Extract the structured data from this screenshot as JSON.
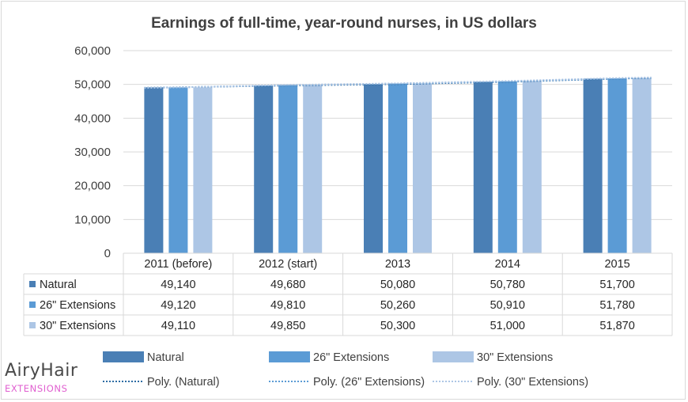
{
  "chart_data": {
    "type": "bar",
    "title": "Earnings of full-time, year-round nurses, in US dollars",
    "categories": [
      "2011 (before)",
      "2012 (start)",
      "2013",
      "2014",
      "2015"
    ],
    "series": [
      {
        "name": "Natural",
        "values": [
          49140,
          49680,
          50080,
          50780,
          51700
        ],
        "color": "#4a7fb5",
        "labels": [
          "49,140",
          "49,680",
          "50,080",
          "50,780",
          "51,700"
        ]
      },
      {
        "name": "26\" Extensions",
        "values": [
          49120,
          49810,
          50260,
          50910,
          51780
        ],
        "color": "#5b9bd5",
        "labels": [
          "49,120",
          "49,810",
          "50,260",
          "50,910",
          "51,780"
        ]
      },
      {
        "name": "30\" Extensions",
        "values": [
          49110,
          49850,
          50300,
          51000,
          51870
        ],
        "color": "#adc6e5",
        "labels": [
          "49,110",
          "49,850",
          "50,300",
          "51,000",
          "51,870"
        ]
      }
    ],
    "trendlines": [
      {
        "name": "Poly. (Natural)",
        "series_index": 0,
        "color": "#2e6da4",
        "style": "dotted"
      },
      {
        "name": "Poly. (26\" Extensions)",
        "series_index": 1,
        "color": "#5b9bd5",
        "style": "dotted"
      },
      {
        "name": "Poly. (30\" Extensions)",
        "series_index": 2,
        "color": "#adc6e5",
        "style": "dotted"
      }
    ],
    "ylim": [
      0,
      60000
    ],
    "yticks": [
      0,
      10000,
      20000,
      30000,
      40000,
      50000,
      60000
    ],
    "ytick_labels": [
      "0",
      "10,000",
      "20,000",
      "30,000",
      "40,000",
      "50,000",
      "60,000"
    ],
    "grid": true,
    "data_table": true,
    "legend_position": "bottom"
  },
  "logo": {
    "main": "AiryHair",
    "sub": "EXTENSIONS"
  }
}
